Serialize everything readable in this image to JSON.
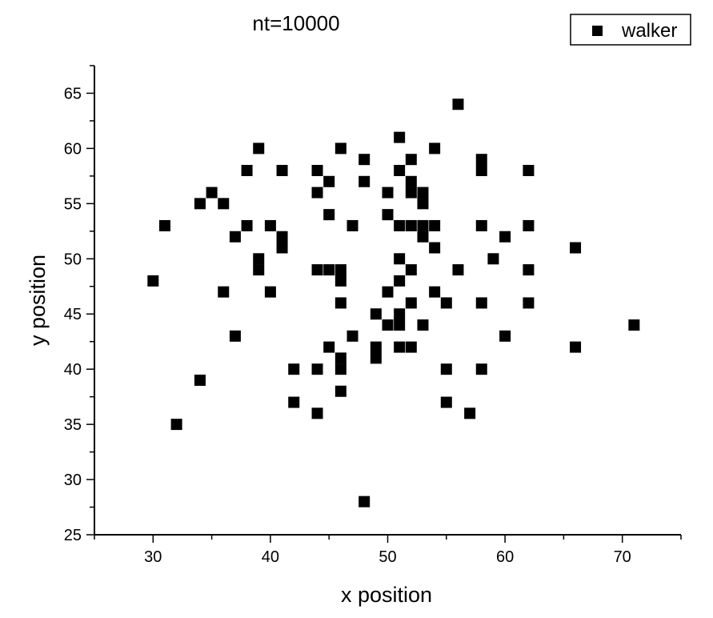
{
  "chart_data": {
    "type": "scatter",
    "title": "nt=10000",
    "xlabel": "x position",
    "ylabel": "y position",
    "xlim": [
      25,
      75
    ],
    "ylim": [
      25,
      67.5
    ],
    "xticks": [
      30,
      40,
      50,
      60,
      70
    ],
    "yticks": [
      25,
      30,
      35,
      40,
      45,
      50,
      55,
      60,
      65
    ],
    "grid": false,
    "legend_position": "top-right",
    "marker": "square",
    "series": [
      {
        "name": "walker",
        "color": "#000000",
        "points": [
          [
            30,
            48
          ],
          [
            31,
            53
          ],
          [
            32,
            35
          ],
          [
            34,
            55
          ],
          [
            34,
            39
          ],
          [
            35,
            56
          ],
          [
            36,
            55
          ],
          [
            36,
            47
          ],
          [
            37,
            52
          ],
          [
            37,
            43
          ],
          [
            38,
            58
          ],
          [
            38,
            53
          ],
          [
            39,
            60
          ],
          [
            39,
            50
          ],
          [
            39,
            49
          ],
          [
            40,
            53
          ],
          [
            40,
            47
          ],
          [
            41,
            58
          ],
          [
            41,
            52
          ],
          [
            41,
            51
          ],
          [
            42,
            40
          ],
          [
            42,
            37
          ],
          [
            44,
            58
          ],
          [
            44,
            56
          ],
          [
            44,
            49
          ],
          [
            44,
            40
          ],
          [
            44,
            36
          ],
          [
            45,
            57
          ],
          [
            45,
            54
          ],
          [
            45,
            49
          ],
          [
            45,
            42
          ],
          [
            46,
            60
          ],
          [
            46,
            49
          ],
          [
            46,
            48
          ],
          [
            46,
            46
          ],
          [
            46,
            41
          ],
          [
            46,
            40
          ],
          [
            46,
            38
          ],
          [
            47,
            53
          ],
          [
            47,
            43
          ],
          [
            48,
            59
          ],
          [
            48,
            57
          ],
          [
            48,
            28
          ],
          [
            49,
            45
          ],
          [
            49,
            42
          ],
          [
            49,
            41
          ],
          [
            50,
            56
          ],
          [
            50,
            54
          ],
          [
            50,
            47
          ],
          [
            50,
            44
          ],
          [
            51,
            61
          ],
          [
            51,
            58
          ],
          [
            51,
            53
          ],
          [
            51,
            50
          ],
          [
            51,
            48
          ],
          [
            51,
            45
          ],
          [
            51,
            44
          ],
          [
            51,
            42
          ],
          [
            52,
            59
          ],
          [
            52,
            57
          ],
          [
            52,
            56
          ],
          [
            52,
            53
          ],
          [
            52,
            49
          ],
          [
            52,
            46
          ],
          [
            52,
            42
          ],
          [
            53,
            56
          ],
          [
            53,
            55
          ],
          [
            53,
            53
          ],
          [
            53,
            52
          ],
          [
            53,
            44
          ],
          [
            54,
            60
          ],
          [
            54,
            53
          ],
          [
            54,
            51
          ],
          [
            54,
            47
          ],
          [
            55,
            46
          ],
          [
            55,
            40
          ],
          [
            55,
            37
          ],
          [
            56,
            64
          ],
          [
            56,
            49
          ],
          [
            57,
            36
          ],
          [
            58,
            59
          ],
          [
            58,
            58
          ],
          [
            58,
            53
          ],
          [
            58,
            46
          ],
          [
            58,
            40
          ],
          [
            59,
            50
          ],
          [
            60,
            52
          ],
          [
            60,
            43
          ],
          [
            62,
            58
          ],
          [
            62,
            53
          ],
          [
            62,
            49
          ],
          [
            62,
            46
          ],
          [
            66,
            51
          ],
          [
            66,
            42
          ],
          [
            71,
            44
          ]
        ]
      }
    ]
  }
}
